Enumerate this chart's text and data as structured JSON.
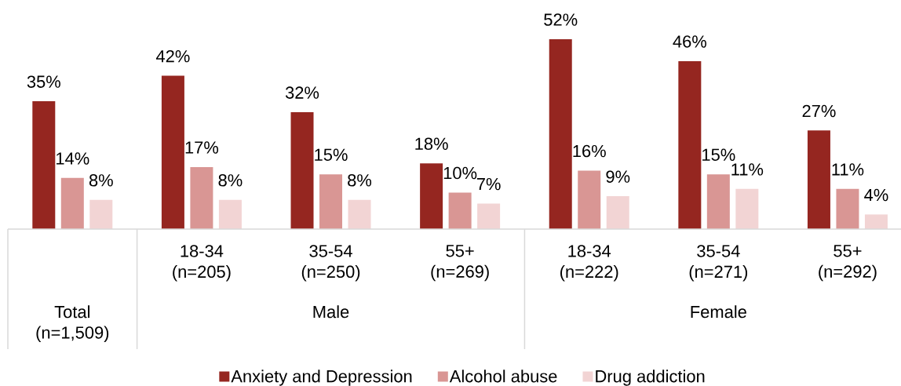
{
  "chart_data": {
    "type": "bar",
    "categories": [
      null,
      "18-34 (n=205)",
      "35-54 (n=250)",
      "55+ (n=269)",
      "18-34 (n=222)",
      "35-54 (n=271)",
      "55+ (n=292)"
    ],
    "series": [
      {
        "name": "Anxiety and Depression",
        "color": "#952620",
        "values": [
          35,
          42,
          32,
          18,
          52,
          46,
          27
        ],
        "value_labels": [
          "35%",
          "42%",
          "32%",
          "18%",
          "52%",
          "46%",
          "27%"
        ]
      },
      {
        "name": "Alcohol abuse",
        "color": "#d99694",
        "values": [
          14,
          17,
          15,
          10,
          16,
          15,
          11
        ],
        "value_labels": [
          "14%",
          "17%",
          "15%",
          "10%",
          "16%",
          "15%",
          "11%"
        ]
      },
      {
        "name": "Drug addiction",
        "color": "#f2d4d4",
        "values": [
          8,
          8,
          8,
          7,
          9,
          11,
          4
        ],
        "value_labels": [
          "8%",
          "8%",
          "8%",
          "7%",
          "9%",
          "11%",
          "4%"
        ]
      }
    ],
    "annotations": [
      "Total (n=1,509)",
      "Male",
      "Female"
    ],
    "legend": "bottom"
  }
}
